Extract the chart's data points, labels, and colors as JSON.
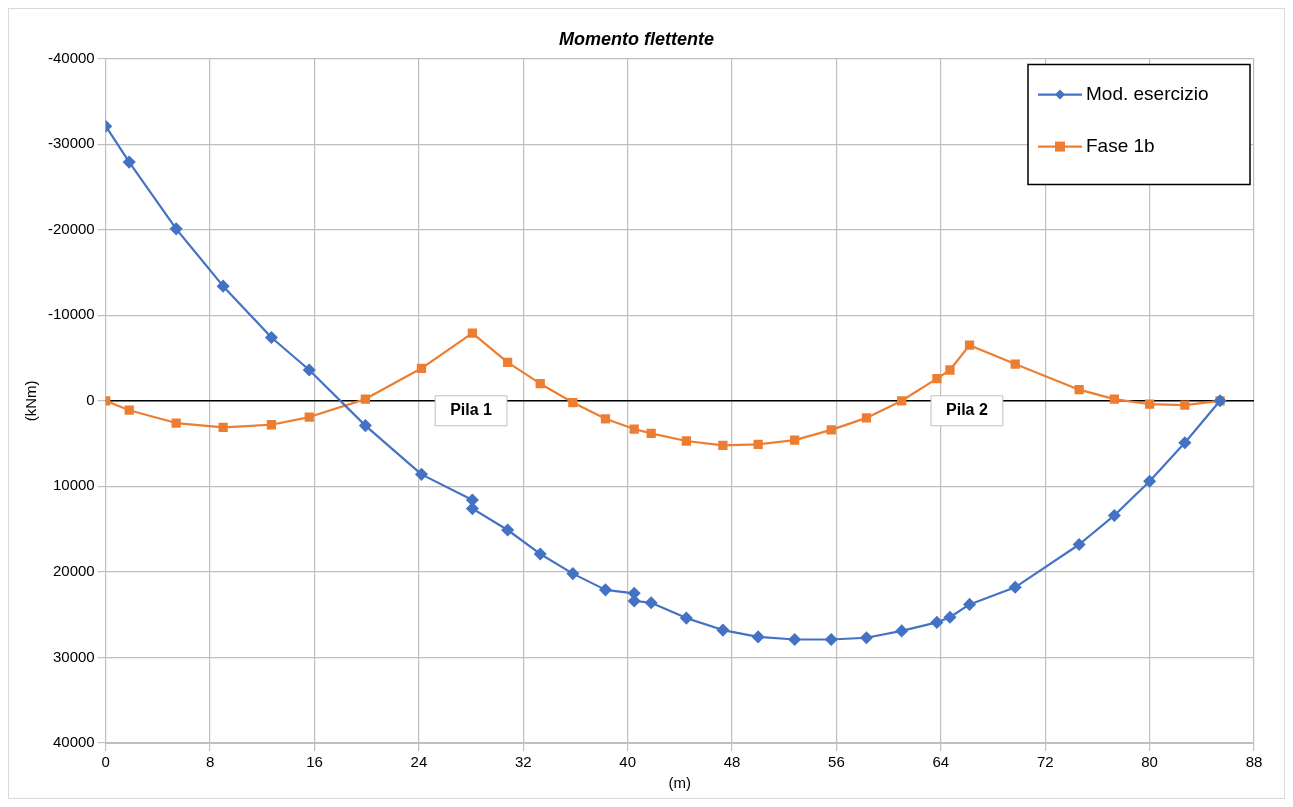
{
  "chart_data": {
    "type": "line",
    "title": "Momento flettente",
    "xlabel": "(m)",
    "ylabel": "(kNm)",
    "xlim": [
      0,
      88
    ],
    "xticks": [
      0,
      8,
      16,
      24,
      32,
      40,
      48,
      56,
      64,
      72,
      80,
      88
    ],
    "ylim": [
      40000,
      -40000
    ],
    "yticks": [
      -40000,
      -30000,
      -20000,
      -10000,
      0,
      10000,
      20000,
      30000,
      40000
    ],
    "grid": true,
    "legend": "top right",
    "line_style": "solid",
    "ref_lines": [
      {
        "axis": "y",
        "value": 0,
        "color": "#000000"
      }
    ],
    "annotations": [
      {
        "text": "Pila 1",
        "x": 28,
        "y": 0
      },
      {
        "text": "Pila 2",
        "x": 66,
        "y": 0
      }
    ],
    "series": [
      {
        "name": "Mod. esercizio",
        "color": "#4472c4",
        "marker": "diamond",
        "x": [
          0,
          1.8,
          5.4,
          9,
          12.7,
          15.6,
          19.9,
          24.2,
          28.1,
          28.1,
          30.8,
          33.3,
          35.8,
          38.3,
          40.5,
          40.5,
          41.8,
          44.5,
          47.3,
          50,
          52.8,
          55.6,
          58.3,
          61,
          63.7,
          64.7,
          66.2,
          69.7,
          74.6,
          77.3,
          80,
          82.7,
          85.4
        ],
        "values": [
          -32100,
          -27900,
          -20100,
          -13400,
          -7400,
          -3600,
          2900,
          8600,
          11600,
          12600,
          15100,
          17900,
          20200,
          22100,
          22500,
          23400,
          23600,
          25400,
          26800,
          27600,
          27900,
          27900,
          27700,
          26900,
          25900,
          25300,
          23800,
          21800,
          16800,
          13400,
          9400,
          4900,
          0
        ]
      },
      {
        "name": "Fase 1b",
        "color": "#ed7d31",
        "marker": "square",
        "x": [
          0,
          1.8,
          5.4,
          9,
          12.7,
          15.6,
          19.9,
          24.2,
          28.1,
          30.8,
          33.3,
          35.8,
          38.3,
          40.5,
          41.8,
          44.5,
          47.3,
          50,
          52.8,
          55.6,
          58.3,
          61,
          63.7,
          64.7,
          66.2,
          69.7,
          74.6,
          77.3,
          80,
          82.7,
          85.4
        ],
        "values": [
          0,
          1100,
          2600,
          3100,
          2800,
          1900,
          -200,
          -3800,
          -7900,
          -4500,
          -2000,
          200,
          2100,
          3300,
          3800,
          4700,
          5200,
          5100,
          4600,
          3400,
          2000,
          0,
          -2600,
          -3600,
          -6500,
          -4300,
          -1300,
          -200,
          400,
          500,
          0
        ]
      }
    ]
  }
}
